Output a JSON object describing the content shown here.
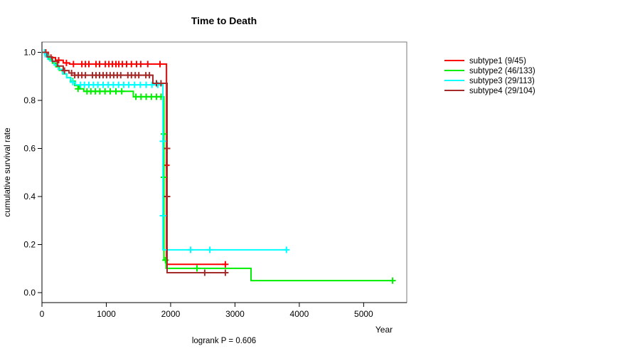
{
  "chart_data": {
    "type": "line",
    "subtype_chart": "kaplan-meier-step",
    "title": "Time to Death",
    "xlabel": "Year",
    "ylabel": "cumulative survival rate",
    "footnote": "logrank P = 0.606",
    "xlim": [
      0,
      5670
    ],
    "ylim": [
      0.0,
      1.0
    ],
    "grid": false,
    "legend_position": "right-outside",
    "xticks": [
      {
        "v": 0,
        "label": "0"
      },
      {
        "v": 1000,
        "label": "1000"
      },
      {
        "v": 2000,
        "label": "2000"
      },
      {
        "v": 3000,
        "label": "3000"
      },
      {
        "v": 4000,
        "label": "4000"
      },
      {
        "v": 5000,
        "label": "5000"
      }
    ],
    "yticks": [
      {
        "v": 0.0,
        "label": "0.0"
      },
      {
        "v": 0.2,
        "label": "0.2"
      },
      {
        "v": 0.4,
        "label": "0.4"
      },
      {
        "v": 0.6,
        "label": "0.6"
      },
      {
        "v": 0.8,
        "label": "0.8"
      },
      {
        "v": 1.0,
        "label": "1.0"
      }
    ],
    "series": [
      {
        "name": "subtype1",
        "legend_label": "subtype1 (9/45)",
        "events": 9,
        "n": 45,
        "color": "#FF0000",
        "end": 2850,
        "steps": [
          [
            0,
            1.0
          ],
          [
            100,
            0.978
          ],
          [
            210,
            0.967
          ],
          [
            330,
            0.956
          ],
          [
            430,
            0.951
          ],
          [
            1935,
            0.118
          ]
        ],
        "censors": [
          [
            60,
            1.0
          ],
          [
            140,
            0.978
          ],
          [
            260,
            0.967
          ],
          [
            380,
            0.956
          ],
          [
            490,
            0.951
          ],
          [
            620,
            0.951
          ],
          [
            675,
            0.951
          ],
          [
            730,
            0.951
          ],
          [
            840,
            0.951
          ],
          [
            895,
            0.951
          ],
          [
            985,
            0.951
          ],
          [
            1040,
            0.951
          ],
          [
            1095,
            0.951
          ],
          [
            1150,
            0.951
          ],
          [
            1195,
            0.951
          ],
          [
            1250,
            0.951
          ],
          [
            1315,
            0.951
          ],
          [
            1390,
            0.951
          ],
          [
            1470,
            0.951
          ],
          [
            1535,
            0.951
          ],
          [
            1645,
            0.951
          ],
          [
            1835,
            0.951
          ],
          [
            1935,
            0.53
          ],
          [
            2850,
            0.118
          ]
        ]
      },
      {
        "name": "subtype2",
        "legend_label": "subtype2 (46/133)",
        "events": 46,
        "n": 133,
        "color": "#00EE00",
        "end": 5450,
        "steps": [
          [
            0,
            1.0
          ],
          [
            55,
            0.985
          ],
          [
            110,
            0.97
          ],
          [
            165,
            0.955
          ],
          [
            215,
            0.94
          ],
          [
            270,
            0.925
          ],
          [
            325,
            0.91
          ],
          [
            385,
            0.895
          ],
          [
            445,
            0.88
          ],
          [
            510,
            0.862
          ],
          [
            580,
            0.848
          ],
          [
            650,
            0.838
          ],
          [
            1420,
            0.815
          ],
          [
            1895,
            0.135
          ],
          [
            1930,
            0.101
          ],
          [
            3250,
            0.05
          ]
        ],
        "censors": [
          [
            480,
            0.88
          ],
          [
            560,
            0.848
          ],
          [
            700,
            0.838
          ],
          [
            760,
            0.838
          ],
          [
            830,
            0.838
          ],
          [
            900,
            0.838
          ],
          [
            980,
            0.838
          ],
          [
            1060,
            0.838
          ],
          [
            1150,
            0.838
          ],
          [
            1240,
            0.838
          ],
          [
            1460,
            0.815
          ],
          [
            1540,
            0.815
          ],
          [
            1620,
            0.815
          ],
          [
            1700,
            0.815
          ],
          [
            1780,
            0.815
          ],
          [
            1850,
            0.815
          ],
          [
            1895,
            0.66
          ],
          [
            1895,
            0.48
          ],
          [
            1920,
            0.135
          ],
          [
            2410,
            0.101
          ],
          [
            5450,
            0.05
          ]
        ]
      },
      {
        "name": "subtype3",
        "legend_label": "subtype3 (29/113)",
        "events": 29,
        "n": 113,
        "color": "#00FFFF",
        "end": 3800,
        "steps": [
          [
            0,
            1.0
          ],
          [
            60,
            0.982
          ],
          [
            125,
            0.964
          ],
          [
            190,
            0.947
          ],
          [
            255,
            0.929
          ],
          [
            320,
            0.911
          ],
          [
            385,
            0.894
          ],
          [
            450,
            0.876
          ],
          [
            520,
            0.865
          ],
          [
            1880,
            0.178
          ]
        ],
        "censors": [
          [
            40,
            1.0
          ],
          [
            90,
            0.982
          ],
          [
            480,
            0.876
          ],
          [
            600,
            0.865
          ],
          [
            660,
            0.865
          ],
          [
            730,
            0.865
          ],
          [
            800,
            0.865
          ],
          [
            870,
            0.865
          ],
          [
            950,
            0.865
          ],
          [
            1030,
            0.865
          ],
          [
            1110,
            0.865
          ],
          [
            1190,
            0.865
          ],
          [
            1270,
            0.865
          ],
          [
            1350,
            0.865
          ],
          [
            1440,
            0.865
          ],
          [
            1530,
            0.865
          ],
          [
            1620,
            0.865
          ],
          [
            1710,
            0.865
          ],
          [
            1800,
            0.865
          ],
          [
            1880,
            0.63
          ],
          [
            1880,
            0.32
          ],
          [
            2310,
            0.178
          ],
          [
            2610,
            0.178
          ],
          [
            3800,
            0.178
          ]
        ]
      },
      {
        "name": "subtype4",
        "legend_label": "subtype4 (29/104)",
        "events": 29,
        "n": 104,
        "color": "#A52A2A",
        "end": 2850,
        "steps": [
          [
            0,
            1.0
          ],
          [
            80,
            0.981
          ],
          [
            160,
            0.962
          ],
          [
            240,
            0.943
          ],
          [
            330,
            0.924
          ],
          [
            420,
            0.914
          ],
          [
            510,
            0.905
          ],
          [
            1724,
            0.871
          ],
          [
            1945,
            0.083
          ]
        ],
        "censors": [
          [
            350,
            0.924
          ],
          [
            460,
            0.914
          ],
          [
            510,
            0.905
          ],
          [
            565,
            0.905
          ],
          [
            620,
            0.905
          ],
          [
            675,
            0.905
          ],
          [
            785,
            0.905
          ],
          [
            840,
            0.905
          ],
          [
            895,
            0.905
          ],
          [
            950,
            0.905
          ],
          [
            1005,
            0.905
          ],
          [
            1060,
            0.905
          ],
          [
            1115,
            0.905
          ],
          [
            1170,
            0.905
          ],
          [
            1225,
            0.905
          ],
          [
            1335,
            0.905
          ],
          [
            1390,
            0.905
          ],
          [
            1450,
            0.905
          ],
          [
            1505,
            0.905
          ],
          [
            1615,
            0.905
          ],
          [
            1670,
            0.905
          ],
          [
            1780,
            0.871
          ],
          [
            1850,
            0.871
          ],
          [
            1945,
            0.6
          ],
          [
            1945,
            0.4
          ],
          [
            2530,
            0.083
          ],
          [
            2850,
            0.083
          ]
        ]
      }
    ],
    "box_color": "#7a7a7a",
    "axis_color": "#000000"
  }
}
